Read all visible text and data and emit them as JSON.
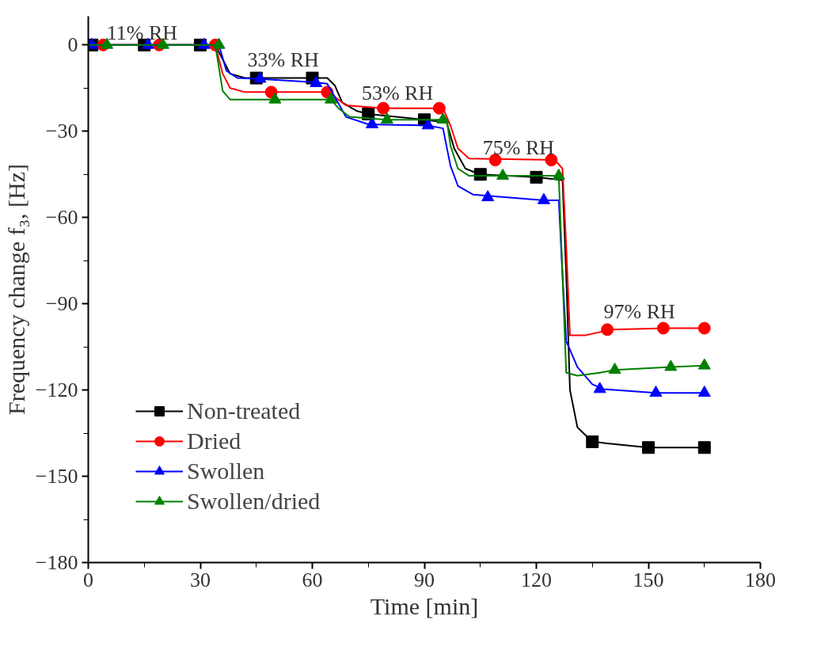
{
  "chart_data": {
    "type": "line",
    "xlabel": "Time [min]",
    "ylabel": "Frequency change f₃, [Hz]",
    "xlim": [
      0,
      180
    ],
    "xticks": [
      0,
      30,
      60,
      90,
      120,
      150,
      180
    ],
    "ylim": [
      -180,
      10
    ],
    "yticks": [
      -180,
      -150,
      -120,
      -90,
      -60,
      -30,
      0
    ],
    "grid": false,
    "legend": "bottom left",
    "annotations": [
      "11% RH",
      "33% RH",
      "53% RH",
      "75% RH",
      "97% RH"
    ],
    "series": [
      {
        "marker": "none",
        "color": "#000000",
        "x": [
          0,
          34,
          36,
          38,
          42,
          64,
          66,
          68,
          72,
          75,
          90,
          96,
          98,
          101,
          105,
          120,
          127,
          128,
          129,
          131,
          135,
          150,
          165
        ],
        "values": [
          0,
          0,
          -5,
          -10,
          -11.5,
          -11.5,
          -14,
          -20,
          -23,
          -24,
          -26,
          -27,
          -36,
          -43,
          -45,
          -46,
          -47,
          -80,
          -120,
          -133,
          -138,
          -140,
          -140
        ]
      },
      {
        "type": "scatter",
        "name": "Non-treated",
        "marker": "square",
        "color": "#000000",
        "x": [
          1,
          15,
          30,
          45,
          60,
          75,
          90,
          105,
          120,
          135,
          150,
          165
        ],
        "values": [
          0,
          0,
          0,
          -11.5,
          -11.5,
          -24,
          -26,
          -45,
          -46,
          -138,
          -140,
          -140
        ]
      },
      {
        "marker": "none",
        "color": "#ff0000",
        "x": [
          0,
          34,
          36,
          38,
          42,
          64,
          66,
          69,
          79,
          95,
          97,
          99,
          102,
          125,
          127,
          128,
          129,
          133,
          140,
          155,
          165
        ],
        "values": [
          0,
          0,
          -10,
          -15,
          -16.4,
          -16.4,
          -18,
          -21,
          -22,
          -22,
          -28,
          -36,
          -39.5,
          -40,
          -43,
          -70,
          -101,
          -101,
          -99,
          -98.5,
          -98.5
        ]
      },
      {
        "type": "scatter",
        "name": "Dried",
        "marker": "circle",
        "color": "#ff0000",
        "x": [
          4,
          19,
          34,
          49,
          64,
          79,
          94,
          109,
          124,
          139,
          154,
          165
        ],
        "values": [
          0,
          0,
          0,
          -16.4,
          -16.4,
          -22,
          -22,
          -40,
          -40,
          -99,
          -98.5,
          -98.5
        ]
      },
      {
        "marker": "none",
        "color": "#0000ff",
        "x": [
          0,
          35,
          37,
          40,
          46,
          61,
          64,
          66,
          69,
          75,
          91,
          95,
          97,
          99,
          103,
          122,
          126,
          127,
          128,
          131,
          135,
          138,
          152,
          165
        ],
        "values": [
          0,
          0,
          -9,
          -11.5,
          -11.8,
          -13,
          -13.5,
          -18,
          -25,
          -27.6,
          -28,
          -29,
          -42,
          -49,
          -52,
          -54,
          -54,
          -80,
          -103,
          -112,
          -118,
          -119.7,
          -121,
          -121
        ]
      },
      {
        "type": "scatter",
        "name": "Swollen",
        "marker": "triangle",
        "color": "#0000ff",
        "x": [
          1,
          16,
          31,
          46,
          61,
          76,
          91,
          107,
          122,
          137,
          152,
          165
        ],
        "values": [
          0,
          0,
          0,
          -11.8,
          -13.3,
          -27.6,
          -28,
          -53,
          -54,
          -119.7,
          -121,
          -121
        ]
      },
      {
        "marker": "none",
        "color": "#008000",
        "x": [
          0,
          34,
          35,
          36,
          38,
          65,
          67,
          70,
          80,
          96,
          97,
          99,
          102,
          126,
          127,
          128,
          131,
          137,
          141,
          156,
          165
        ],
        "values": [
          0,
          0,
          -8,
          -16,
          -19,
          -19,
          -22,
          -25,
          -26,
          -26,
          -35,
          -43,
          -45.5,
          -45.5,
          -80,
          -114,
          -115,
          -114,
          -113,
          -112,
          -111.5
        ]
      },
      {
        "type": "scatter",
        "name": "Swollen/dried",
        "marker": "triangle",
        "color": "#008000",
        "x": [
          5,
          20,
          35,
          50,
          65,
          80,
          95,
          111,
          126,
          141,
          156,
          165
        ],
        "values": [
          0,
          0,
          0,
          -19,
          -19,
          -26,
          -26,
          -45.5,
          -45.5,
          -113,
          -112,
          -111.5
        ]
      }
    ]
  }
}
